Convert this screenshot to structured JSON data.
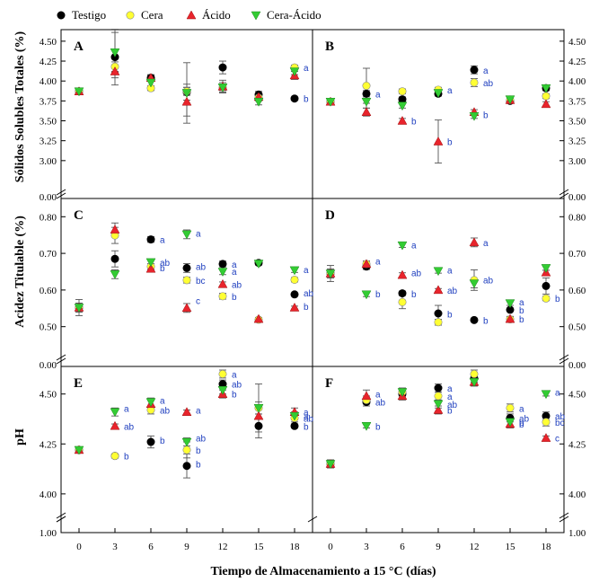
{
  "x_title": "Tiempo de Almacenamiento a 15 °C (días)",
  "legend": [
    {
      "name": "Testigo",
      "marker": "circle",
      "color": "#000000"
    },
    {
      "name": "Cera",
      "marker": "circle",
      "color": "#ffff33"
    },
    {
      "name": "Ácido",
      "marker": "triangle-up",
      "color": "#e8242c"
    },
    {
      "name": "Cera-Ácido",
      "marker": "triangle-down",
      "color": "#33cc33"
    }
  ],
  "colors": {
    "annotation": "#1f3fbf",
    "axis": "#000000"
  },
  "chart_data": [
    {
      "id": "A",
      "type": "scatter",
      "ylabel": "Sólidos Solubles Totales (%)",
      "ylim": [
        2.75,
        4.6
      ],
      "yticks": [
        3.0,
        3.25,
        3.5,
        3.75,
        4.0,
        4.25,
        4.5
      ],
      "ybreak_bottom": "0.00",
      "x": [
        0,
        3,
        6,
        9,
        12,
        15,
        18
      ],
      "series": [
        {
          "name": "Testigo",
          "values": [
            3.87,
            4.3,
            4.04,
            3.86,
            4.17,
            3.83,
            3.78
          ],
          "err": [
            0.02,
            0.35,
            0.03,
            0.1,
            0.08,
            0.04,
            0.02
          ]
        },
        {
          "name": "Cera",
          "values": [
            3.87,
            4.18,
            3.91,
            3.87,
            3.92,
            3.79,
            4.17
          ],
          "err": [
            0.02,
            0.06,
            0.03,
            0.05,
            0.04,
            0.03,
            0.03
          ]
        },
        {
          "name": "Ácido",
          "values": [
            3.87,
            4.12,
            4.04,
            3.74,
            3.93,
            3.8,
            4.07
          ],
          "err": [
            0.02,
            0.08,
            0.04,
            0.18,
            0.08,
            0.05,
            0.05
          ]
        },
        {
          "name": "Cera-Ácido",
          "values": [
            3.87,
            4.36,
            3.98,
            3.85,
            3.92,
            3.74,
            4.12
          ],
          "err": [
            0.02,
            0.25,
            0.05,
            0.38,
            0.06,
            0.04,
            0.04
          ]
        }
      ],
      "annotations": [
        {
          "x": 18,
          "y": 4.17,
          "text": "a"
        },
        {
          "x": 18,
          "y": 3.78,
          "text": "b"
        }
      ]
    },
    {
      "id": "B",
      "type": "scatter",
      "ylabel": "",
      "ylim": [
        2.75,
        4.6
      ],
      "yticks": [
        3.0,
        3.25,
        3.5,
        3.75,
        4.0,
        4.25,
        4.5
      ],
      "ybreak_bottom": "0.00",
      "x": [
        0,
        3,
        6,
        9,
        12,
        15,
        18
      ],
      "series": [
        {
          "name": "Testigo",
          "values": [
            3.74,
            3.84,
            3.77,
            3.84,
            4.14,
            3.75,
            3.91
          ],
          "err": [
            0.02,
            0.04,
            0.03,
            0.03,
            0.05,
            0.03,
            0.03
          ]
        },
        {
          "name": "Cera",
          "values": [
            3.74,
            3.94,
            3.87,
            3.89,
            3.98,
            3.76,
            3.81
          ],
          "err": [
            0.02,
            0.22,
            0.03,
            0.03,
            0.05,
            0.04,
            0.03
          ]
        },
        {
          "name": "Ácido",
          "values": [
            3.74,
            3.61,
            3.5,
            3.24,
            3.61,
            3.76,
            3.71
          ],
          "err": [
            0.02,
            0.05,
            0.03,
            0.27,
            0.03,
            0.03,
            0.03
          ]
        },
        {
          "name": "Cera-Ácido",
          "values": [
            3.74,
            3.74,
            3.69,
            3.85,
            3.56,
            3.77,
            3.91
          ],
          "err": [
            0.02,
            0.08,
            0.03,
            0.03,
            0.03,
            0.03,
            0.03
          ]
        }
      ],
      "annotations": [
        {
          "x": 3,
          "y": 3.84,
          "text": "a"
        },
        {
          "x": 6,
          "y": 3.5,
          "text": "b"
        },
        {
          "x": 9,
          "y": 3.24,
          "text": "b"
        },
        {
          "x": 9,
          "y": 3.89,
          "text": "a"
        },
        {
          "x": 12,
          "y": 4.14,
          "text": "a"
        },
        {
          "x": 12,
          "y": 3.98,
          "text": "ab"
        },
        {
          "x": 12,
          "y": 3.58,
          "text": "b"
        }
      ]
    },
    {
      "id": "C",
      "type": "scatter",
      "ylabel": "Acidez Titulable (%)",
      "ylim": [
        0.46,
        0.84
      ],
      "yticks": [
        0.5,
        0.6,
        0.7,
        0.8
      ],
      "ybreak_bottom": "0.00",
      "x": [
        0,
        3,
        6,
        9,
        12,
        15,
        18
      ],
      "series": [
        {
          "name": "Testigo",
          "values": [
            0.552,
            0.685,
            0.738,
            0.66,
            0.671,
            0.674,
            0.588
          ],
          "err": [
            0.022,
            0.022,
            0.008,
            0.012,
            0.008,
            0.004,
            0.004
          ]
        },
        {
          "name": "Cera",
          "values": [
            0.552,
            0.749,
            0.664,
            0.627,
            0.583,
            0.519,
            0.628
          ],
          "err": [
            0.012,
            0.022,
            0.008,
            0.008,
            0.008,
            0.004,
            0.006
          ]
        },
        {
          "name": "Ácido",
          "values": [
            0.552,
            0.765,
            0.658,
            0.551,
            0.616,
            0.521,
            0.552
          ],
          "err": [
            0.012,
            0.018,
            0.008,
            0.012,
            0.006,
            0.004,
            0.004
          ]
        },
        {
          "name": "Cera-Ácido",
          "values": [
            0.552,
            0.643,
            0.676,
            0.752,
            0.65,
            0.672,
            0.654
          ],
          "err": [
            0.012,
            0.012,
            0.008,
            0.012,
            0.008,
            0.004,
            0.006
          ]
        }
      ],
      "annotations": [
        {
          "x": 6,
          "y": 0.738,
          "text": "a"
        },
        {
          "x": 6,
          "y": 0.676,
          "text": "ab"
        },
        {
          "x": 6,
          "y": 0.661,
          "text": "b"
        },
        {
          "x": 9,
          "y": 0.755,
          "text": "a"
        },
        {
          "x": 9,
          "y": 0.665,
          "text": "ab"
        },
        {
          "x": 9,
          "y": 0.627,
          "text": "bc"
        },
        {
          "x": 9,
          "y": 0.571,
          "text": "c"
        },
        {
          "x": 12,
          "y": 0.671,
          "text": "a"
        },
        {
          "x": 12,
          "y": 0.651,
          "text": "a"
        },
        {
          "x": 12,
          "y": 0.616,
          "text": "ab"
        },
        {
          "x": 12,
          "y": 0.583,
          "text": "b"
        },
        {
          "x": 18,
          "y": 0.656,
          "text": "a"
        },
        {
          "x": 18,
          "y": 0.592,
          "text": "ab"
        },
        {
          "x": 18,
          "y": 0.556,
          "text": "b"
        }
      ]
    },
    {
      "id": "D",
      "type": "scatter",
      "ylabel": "",
      "ylim": [
        0.46,
        0.84
      ],
      "yticks": [
        0.5,
        0.6,
        0.7,
        0.8
      ],
      "ybreak_bottom": "0.00",
      "x": [
        0,
        3,
        6,
        9,
        12,
        15,
        18
      ],
      "series": [
        {
          "name": "Testigo",
          "values": [
            0.645,
            0.664,
            0.591,
            0.536,
            0.518,
            0.546,
            0.611
          ],
          "err": [
            0.022,
            0.008,
            0.006,
            0.022,
            0.004,
            0.004,
            0.022
          ]
        },
        {
          "name": "Cera",
          "values": [
            0.645,
            0.671,
            0.567,
            0.512,
            0.627,
            0.52,
            0.577
          ],
          "err": [
            0.012,
            0.008,
            0.018,
            0.008,
            0.028,
            0.008,
            0.006
          ]
        },
        {
          "name": "Ácido",
          "values": [
            0.645,
            0.671,
            0.641,
            0.6,
            0.73,
            0.521,
            0.648
          ],
          "err": [
            0.012,
            0.008,
            0.006,
            0.004,
            0.012,
            0.006,
            0.006
          ]
        },
        {
          "name": "Cera-Ácido",
          "values": [
            0.645,
            0.588,
            0.722,
            0.652,
            0.618,
            0.564,
            0.66
          ],
          "err": [
            0.012,
            0.006,
            0.006,
            0.006,
            0.012,
            0.006,
            0.006
          ]
        }
      ],
      "annotations": [
        {
          "x": 3,
          "y": 0.68,
          "text": "a"
        },
        {
          "x": 3,
          "y": 0.59,
          "text": "b"
        },
        {
          "x": 6,
          "y": 0.723,
          "text": "a"
        },
        {
          "x": 6,
          "y": 0.647,
          "text": "ab"
        },
        {
          "x": 6,
          "y": 0.59,
          "text": "b"
        },
        {
          "x": 9,
          "y": 0.655,
          "text": "a"
        },
        {
          "x": 9,
          "y": 0.6,
          "text": "ab"
        },
        {
          "x": 9,
          "y": 0.535,
          "text": "b"
        },
        {
          "x": 12,
          "y": 0.73,
          "text": "a"
        },
        {
          "x": 12,
          "y": 0.628,
          "text": "ab"
        },
        {
          "x": 12,
          "y": 0.518,
          "text": "b"
        },
        {
          "x": 15,
          "y": 0.568,
          "text": "a"
        },
        {
          "x": 15,
          "y": 0.546,
          "text": "b"
        },
        {
          "x": 15,
          "y": 0.521,
          "text": "b"
        },
        {
          "x": 18,
          "y": 0.578,
          "text": "b"
        }
      ]
    },
    {
      "id": "E",
      "type": "scatter",
      "ylabel": "pH",
      "ylim": [
        3.95,
        4.62
      ],
      "yticks": [
        4.0,
        4.25,
        4.5
      ],
      "ybreak_bottom": "1.00",
      "x": [
        0,
        3,
        6,
        9,
        12,
        15,
        18
      ],
      "series": [
        {
          "name": "Testigo",
          "values": [
            4.22,
            4.19,
            4.26,
            4.14,
            4.55,
            4.34,
            4.34
          ],
          "err": [
            0.01,
            0.01,
            0.03,
            0.06,
            0.02,
            0.06,
            0.01
          ]
        },
        {
          "name": "Cera",
          "values": [
            4.22,
            4.19,
            4.42,
            4.22,
            4.6,
            4.43,
            4.38
          ],
          "err": [
            0.01,
            0.01,
            0.02,
            0.04,
            0.02,
            0.03,
            0.02
          ]
        },
        {
          "name": "Ácido",
          "values": [
            4.22,
            4.34,
            4.45,
            4.41,
            4.5,
            4.39,
            4.41
          ],
          "err": [
            0.01,
            0.01,
            0.02,
            0.01,
            0.02,
            0.05,
            0.02
          ]
        },
        {
          "name": "Cera-Ácido",
          "values": [
            4.22,
            4.41,
            4.46,
            4.26,
            4.52,
            4.43,
            4.39
          ],
          "err": [
            0.01,
            0.02,
            0.02,
            0.02,
            0.02,
            0.12,
            0.02
          ]
        }
      ],
      "annotations": [
        {
          "x": 3,
          "y": 4.43,
          "text": "a"
        },
        {
          "x": 3,
          "y": 4.34,
          "text": "ab"
        },
        {
          "x": 3,
          "y": 4.19,
          "text": "b"
        },
        {
          "x": 6,
          "y": 4.47,
          "text": "a"
        },
        {
          "x": 6,
          "y": 4.42,
          "text": "ab"
        },
        {
          "x": 6,
          "y": 4.27,
          "text": "b"
        },
        {
          "x": 9,
          "y": 4.42,
          "text": "a"
        },
        {
          "x": 9,
          "y": 4.28,
          "text": "ab"
        },
        {
          "x": 9,
          "y": 4.22,
          "text": "b"
        },
        {
          "x": 9,
          "y": 4.15,
          "text": "b"
        },
        {
          "x": 12,
          "y": 4.6,
          "text": "a"
        },
        {
          "x": 12,
          "y": 4.55,
          "text": "ab"
        },
        {
          "x": 12,
          "y": 4.5,
          "text": "b"
        },
        {
          "x": 18,
          "y": 4.41,
          "text": "a"
        },
        {
          "x": 18,
          "y": 4.39,
          "text": "a"
        },
        {
          "x": 18,
          "y": 4.38,
          "text": "ab"
        },
        {
          "x": 18,
          "y": 4.34,
          "text": "b"
        }
      ]
    },
    {
      "id": "F",
      "type": "scatter",
      "ylabel": "",
      "ylim": [
        3.95,
        4.62
      ],
      "yticks": [
        4.0,
        4.25,
        4.5
      ],
      "ybreak_bottom": "1.00",
      "x": [
        0,
        3,
        6,
        9,
        12,
        15,
        18
      ],
      "series": [
        {
          "name": "Testigo",
          "values": [
            4.15,
            4.46,
            4.5,
            4.53,
            4.58,
            4.38,
            4.39
          ],
          "err": [
            0.02,
            0.02,
            0.02,
            0.02,
            0.02,
            0.02,
            0.02
          ]
        },
        {
          "name": "Cera",
          "values": [
            4.15,
            4.47,
            4.51,
            4.49,
            4.6,
            4.43,
            4.36
          ],
          "err": [
            0.02,
            0.02,
            0.02,
            0.02,
            0.02,
            0.02,
            0.02
          ]
        },
        {
          "name": "Ácido",
          "values": [
            4.15,
            4.49,
            4.49,
            4.42,
            4.56,
            4.35,
            4.28
          ],
          "err": [
            0.02,
            0.03,
            0.02,
            0.02,
            0.02,
            0.02,
            0.01
          ]
        },
        {
          "name": "Cera-Ácido",
          "values": [
            4.15,
            4.34,
            4.51,
            4.45,
            4.56,
            4.36,
            4.5
          ],
          "err": [
            0.02,
            0.01,
            0.02,
            0.02,
            0.02,
            0.02,
            0.01
          ]
        }
      ],
      "annotations": [
        {
          "x": 3,
          "y": 4.5,
          "text": "a"
        },
        {
          "x": 3,
          "y": 4.46,
          "text": "ab"
        },
        {
          "x": 3,
          "y": 4.34,
          "text": "b"
        },
        {
          "x": 9,
          "y": 4.53,
          "text": "a"
        },
        {
          "x": 9,
          "y": 4.49,
          "text": "a"
        },
        {
          "x": 9,
          "y": 4.45,
          "text": "ab"
        },
        {
          "x": 9,
          "y": 4.42,
          "text": "b"
        },
        {
          "x": 15,
          "y": 4.43,
          "text": "a"
        },
        {
          "x": 15,
          "y": 4.38,
          "text": "ab"
        },
        {
          "x": 15,
          "y": 4.36,
          "text": "b"
        },
        {
          "x": 15,
          "y": 4.35,
          "text": "b"
        },
        {
          "x": 18,
          "y": 4.51,
          "text": "a"
        },
        {
          "x": 18,
          "y": 4.39,
          "text": "ab"
        },
        {
          "x": 18,
          "y": 4.36,
          "text": "bc"
        },
        {
          "x": 18,
          "y": 4.28,
          "text": "c"
        }
      ]
    }
  ]
}
